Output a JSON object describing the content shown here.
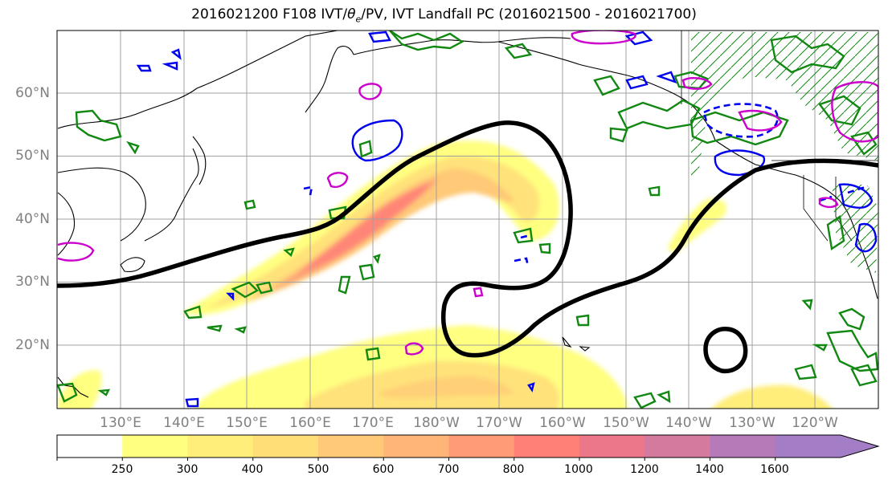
{
  "title": "2016021200 F108 IVT/θ_e/PV, IVT Landfall PC (2016021500 - 2016021700)",
  "title_parts": {
    "prefix": "2016021200 F108 IVT/",
    "theta": "θ",
    "sub": "e",
    "suffix": "/PV, IVT Landfall PC (2016021500 - 2016021700)"
  },
  "map": {
    "projection": "cylindrical",
    "lon_range": [
      120,
      250
    ],
    "lat_range": [
      10,
      70
    ],
    "lat_labels": [
      "60°N",
      "50°N",
      "40°N",
      "30°N",
      "20°N"
    ],
    "lon_labels": [
      "130°E",
      "140°E",
      "150°E",
      "160°E",
      "170°E",
      "180°W",
      "170°W",
      "160°W",
      "150°W",
      "140°W",
      "130°W",
      "120°W"
    ],
    "grid": true
  },
  "colorbar": {
    "levels": [
      "250",
      "300",
      "400",
      "500",
      "600",
      "700",
      "800",
      "1000",
      "1200",
      "1400",
      "1600"
    ],
    "colors": [
      "#ffffff",
      "#ffff80",
      "#ffee7a",
      "#ffdd77",
      "#ffc977",
      "#ffb577",
      "#ff9b77",
      "#ff8077",
      "#ec768a",
      "#d47a9e",
      "#b77ab8",
      "#a37dc6"
    ],
    "extend": "max"
  },
  "colors": {
    "ivt_black_contour": "#000000",
    "pv_green": "#118811",
    "theta_blue": "#0000ee",
    "magenta": "#cc00cc",
    "coast": "#000000"
  }
}
